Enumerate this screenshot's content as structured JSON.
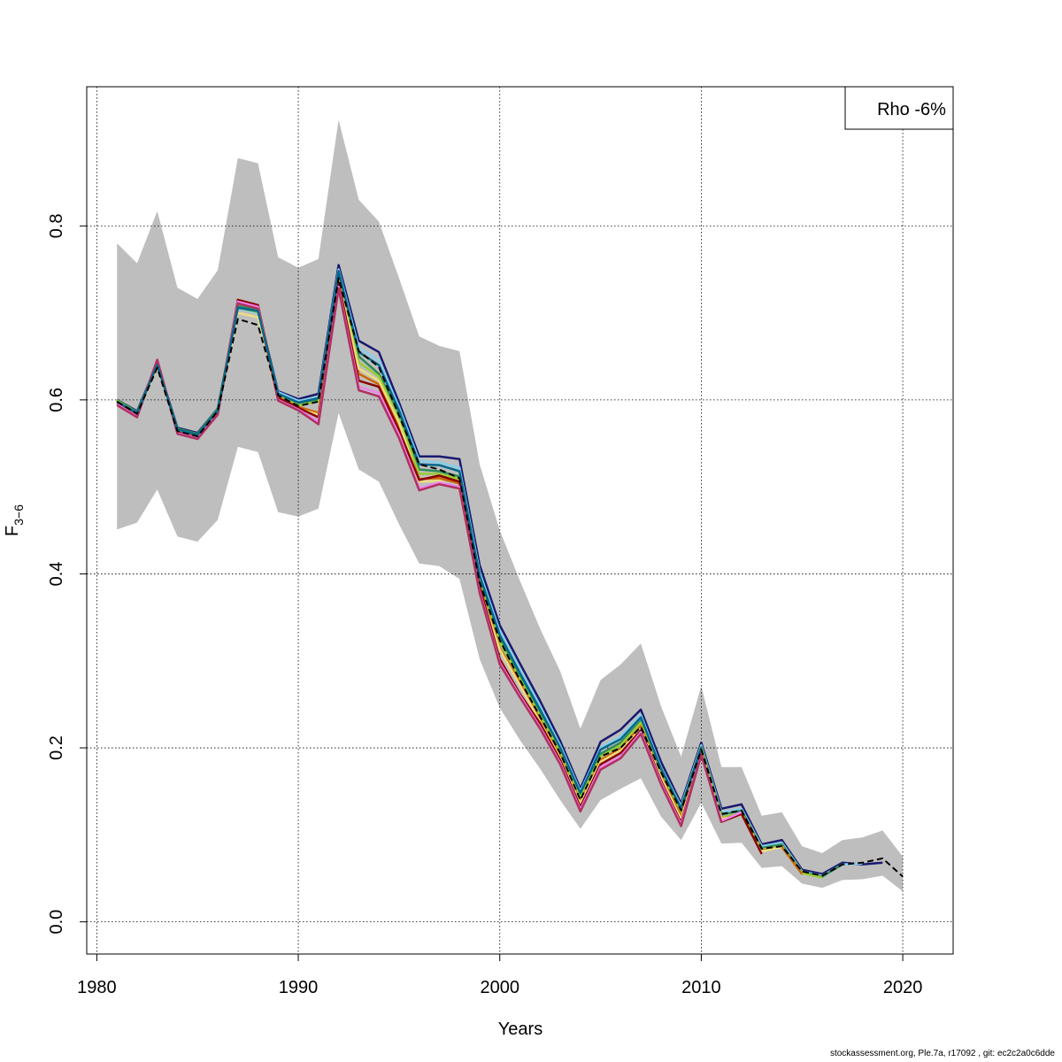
{
  "chart_data": {
    "type": "line",
    "title": "",
    "xlabel": "Years",
    "ylabel_main": "F",
    "ylabel_sub": "3−6",
    "xlim": [
      1979.5,
      2022.5
    ],
    "ylim": [
      -0.037,
      0.96
    ],
    "x_ticks": [
      "1980",
      "1990",
      "2000",
      "2010",
      "2020"
    ],
    "y_ticks": [
      "0.0",
      "0.2",
      "0.4",
      "0.6",
      "0.8"
    ],
    "grid": true,
    "legend": {
      "position": "top-right",
      "text": "Rho -6%"
    },
    "band_color": "#bebebe",
    "confidence_band": {
      "years": [
        1981,
        1982,
        1983,
        1984,
        1985,
        1986,
        1987,
        1988,
        1989,
        1990,
        1991,
        1992,
        1993,
        1994,
        1995,
        1996,
        1997,
        1998,
        1999,
        2000,
        2001,
        2002,
        2003,
        2004,
        2005,
        2006,
        2007,
        2008,
        2009,
        2010,
        2011,
        2012,
        2013,
        2014,
        2015,
        2016,
        2017,
        2018,
        2019,
        2020
      ],
      "upper": [
        0.78,
        0.757,
        0.817,
        0.729,
        0.716,
        0.749,
        0.878,
        0.872,
        0.764,
        0.752,
        0.762,
        0.922,
        0.83,
        0.805,
        0.74,
        0.673,
        0.662,
        0.656,
        0.526,
        0.45,
        0.392,
        0.337,
        0.288,
        0.222,
        0.278,
        0.296,
        0.32,
        0.248,
        0.19,
        0.271,
        0.178,
        0.178,
        0.122,
        0.126,
        0.087,
        0.079,
        0.094,
        0.097,
        0.105,
        0.075
      ],
      "lower": [
        0.451,
        0.459,
        0.497,
        0.443,
        0.437,
        0.462,
        0.546,
        0.54,
        0.471,
        0.466,
        0.475,
        0.585,
        0.52,
        0.506,
        0.457,
        0.412,
        0.409,
        0.394,
        0.302,
        0.246,
        0.209,
        0.176,
        0.14,
        0.107,
        0.14,
        0.153,
        0.165,
        0.121,
        0.094,
        0.137,
        0.09,
        0.091,
        0.062,
        0.064,
        0.044,
        0.039,
        0.048,
        0.049,
        0.053,
        0.035
      ]
    },
    "series": [
      {
        "color": "#000000",
        "dashed": true,
        "x": [
          1981,
          1982,
          1983,
          1984,
          1985,
          1986,
          1987,
          1988,
          1989,
          1990,
          1991,
          1992,
          1993,
          1994,
          1995,
          1996,
          1997,
          1998,
          1999,
          2000,
          2001,
          2002,
          2003,
          2004,
          2005,
          2006,
          2007,
          2008,
          2009,
          2010,
          2011,
          2012,
          2013,
          2014,
          2015,
          2016,
          2017,
          2018,
          2019,
          2020
        ],
        "y": [
          0.598,
          0.584,
          0.637,
          0.564,
          0.558,
          0.587,
          0.693,
          0.686,
          0.605,
          0.593,
          0.598,
          0.74,
          0.656,
          0.638,
          0.582,
          0.526,
          0.52,
          0.51,
          0.39,
          0.324,
          0.278,
          0.236,
          0.194,
          0.14,
          0.19,
          0.2,
          0.224,
          0.172,
          0.128,
          0.198,
          0.124,
          0.128,
          0.084,
          0.087,
          0.058,
          0.053,
          0.066,
          0.068,
          0.073,
          0.052
        ]
      },
      {
        "color": "#191970",
        "dashed": false,
        "x": [
          1981,
          1982,
          1983,
          1984,
          1985,
          1986,
          1987,
          1988,
          1989,
          1990,
          1991,
          1992,
          1993,
          1994,
          1995,
          1996,
          1997,
          1998,
          1999,
          2000,
          2001,
          2002,
          2003,
          2004,
          2005,
          2006,
          2007,
          2008,
          2009,
          2010,
          2011,
          2012,
          2013,
          2014,
          2015,
          2016,
          2017,
          2018,
          2019
        ],
        "y": [
          0.6,
          0.587,
          0.642,
          0.568,
          0.562,
          0.59,
          0.707,
          0.703,
          0.61,
          0.601,
          0.607,
          0.755,
          0.668,
          0.655,
          0.597,
          0.535,
          0.535,
          0.532,
          0.41,
          0.341,
          0.297,
          0.254,
          0.208,
          0.153,
          0.207,
          0.221,
          0.244,
          0.184,
          0.136,
          0.206,
          0.13,
          0.135,
          0.089,
          0.094,
          0.06,
          0.055,
          0.068,
          0.066,
          0.068
        ]
      },
      {
        "color": "#87ceeb",
        "dashed": false,
        "x": [
          1981,
          1982,
          1983,
          1984,
          1985,
          1986,
          1987,
          1988,
          1989,
          1990,
          1991,
          1992,
          1993,
          1994,
          1995,
          1996,
          1997,
          1998,
          1999,
          2000,
          2001,
          2002,
          2003,
          2004,
          2005,
          2006,
          2007,
          2008,
          2009,
          2010,
          2011,
          2012,
          2013,
          2014,
          2015,
          2016,
          2017,
          2018
        ],
        "y": [
          0.599,
          0.586,
          0.64,
          0.566,
          0.56,
          0.589,
          0.705,
          0.7,
          0.609,
          0.599,
          0.603,
          0.75,
          0.66,
          0.645,
          0.592,
          0.53,
          0.528,
          0.522,
          0.402,
          0.334,
          0.29,
          0.248,
          0.203,
          0.15,
          0.2,
          0.213,
          0.238,
          0.178,
          0.133,
          0.203,
          0.126,
          0.13,
          0.087,
          0.091,
          0.058,
          0.053,
          0.066,
          0.067
        ]
      },
      {
        "color": "#2e8b57",
        "dashed": false,
        "x": [
          1981,
          1982,
          1983,
          1984,
          1985,
          1986,
          1987,
          1988,
          1989,
          1990,
          1991,
          1992,
          1993,
          1994,
          1995,
          1996,
          1997,
          1998,
          1999,
          2000,
          2001,
          2002,
          2003,
          2004,
          2005,
          2006,
          2007,
          2008,
          2009,
          2010,
          2011,
          2012,
          2013,
          2014,
          2015,
          2016,
          2017
        ],
        "y": [
          0.6,
          0.586,
          0.641,
          0.567,
          0.561,
          0.59,
          0.708,
          0.703,
          0.607,
          0.596,
          0.6,
          0.745,
          0.65,
          0.63,
          0.585,
          0.52,
          0.518,
          0.512,
          0.393,
          0.328,
          0.282,
          0.24,
          0.198,
          0.146,
          0.193,
          0.206,
          0.231,
          0.176,
          0.131,
          0.201,
          0.123,
          0.128,
          0.085,
          0.089,
          0.057,
          0.052,
          0.066
        ]
      },
      {
        "color": "#9acd32",
        "dashed": false,
        "x": [
          1981,
          1982,
          1983,
          1984,
          1985,
          1986,
          1987,
          1988,
          1989,
          1990,
          1991,
          1992,
          1993,
          1994,
          1995,
          1996,
          1997,
          1998,
          1999,
          2000,
          2001,
          2002,
          2003,
          2004,
          2005,
          2006,
          2007,
          2008,
          2009,
          2010,
          2011,
          2012,
          2013,
          2014,
          2015,
          2016
        ],
        "y": [
          0.599,
          0.585,
          0.64,
          0.566,
          0.56,
          0.588,
          0.706,
          0.701,
          0.605,
          0.594,
          0.598,
          0.742,
          0.643,
          0.627,
          0.578,
          0.515,
          0.515,
          0.509,
          0.389,
          0.322,
          0.279,
          0.237,
          0.195,
          0.143,
          0.19,
          0.203,
          0.229,
          0.172,
          0.126,
          0.198,
          0.12,
          0.125,
          0.083,
          0.087,
          0.056,
          0.051
        ]
      },
      {
        "color": "#cd6600",
        "dashed": false,
        "x": [
          1981,
          1982,
          1983,
          1984,
          1985,
          1986,
          1987,
          1988,
          1989,
          1990,
          1991,
          1992,
          1993,
          1994,
          1995,
          1996,
          1997,
          1998,
          1999,
          2000,
          2001,
          2002,
          2003,
          2004,
          2005,
          2006,
          2007,
          2008,
          2009,
          2010,
          2011,
          2012,
          2013,
          2014,
          2015
        ],
        "y": [
          0.598,
          0.584,
          0.639,
          0.565,
          0.559,
          0.587,
          0.712,
          0.707,
          0.603,
          0.592,
          0.585,
          0.738,
          0.63,
          0.618,
          0.57,
          0.509,
          0.51,
          0.504,
          0.386,
          0.315,
          0.275,
          0.232,
          0.19,
          0.138,
          0.186,
          0.199,
          0.225,
          0.168,
          0.121,
          0.196,
          0.118,
          0.124,
          0.082,
          0.086,
          0.055
        ]
      },
      {
        "color": "#eedc82",
        "dashed": false,
        "x": [
          1981,
          1982,
          1983,
          1984,
          1985,
          1986,
          1987,
          1988,
          1989,
          1990,
          1991,
          1992,
          1993,
          1994,
          1995,
          1996,
          1997,
          1998,
          1999,
          2000,
          2001,
          2002,
          2003,
          2004,
          2005,
          2006,
          2007,
          2008,
          2009,
          2010,
          2011,
          2012,
          2013,
          2014
        ],
        "y": [
          0.597,
          0.583,
          0.638,
          0.564,
          0.558,
          0.586,
          0.7,
          0.695,
          0.6,
          0.59,
          0.583,
          0.736,
          0.636,
          0.622,
          0.574,
          0.506,
          0.507,
          0.497,
          0.383,
          0.313,
          0.272,
          0.23,
          0.188,
          0.136,
          0.184,
          0.197,
          0.222,
          0.166,
          0.118,
          0.195,
          0.118,
          0.123,
          0.081,
          0.086
        ]
      },
      {
        "color": "#8b0000",
        "dashed": false,
        "x": [
          1981,
          1982,
          1983,
          1984,
          1985,
          1986,
          1987,
          1988,
          1989,
          1990,
          1991,
          1992,
          1993,
          1994,
          1995,
          1996,
          1997,
          1998,
          1999,
          2000,
          2001,
          2002,
          2003,
          2004,
          2005,
          2006,
          2007,
          2008,
          2009,
          2010,
          2011,
          2012,
          2013
        ],
        "y": [
          0.596,
          0.582,
          0.646,
          0.563,
          0.557,
          0.585,
          0.715,
          0.709,
          0.602,
          0.591,
          0.58,
          0.735,
          0.622,
          0.615,
          0.565,
          0.508,
          0.513,
          0.506,
          0.385,
          0.302,
          0.262,
          0.228,
          0.186,
          0.132,
          0.181,
          0.194,
          0.22,
          0.162,
          0.114,
          0.194,
          0.115,
          0.124,
          0.078
        ]
      },
      {
        "color": "#ee82ee",
        "dashed": false,
        "x": [
          1981,
          1982,
          1983,
          1984,
          1985,
          1986,
          1987,
          1988,
          1989,
          1990,
          1991,
          1992,
          1993,
          1994,
          1995,
          1996,
          1997,
          1998,
          1999,
          2000,
          2001,
          2002,
          2003,
          2004,
          2005,
          2006,
          2007,
          2008,
          2009,
          2010,
          2011,
          2012
        ],
        "y": [
          0.595,
          0.581,
          0.646,
          0.562,
          0.556,
          0.584,
          0.713,
          0.707,
          0.6,
          0.589,
          0.575,
          0.73,
          0.615,
          0.608,
          0.56,
          0.498,
          0.505,
          0.5,
          0.38,
          0.298,
          0.26,
          0.224,
          0.183,
          0.129,
          0.178,
          0.19,
          0.218,
          0.16,
          0.112,
          0.193,
          0.116,
          0.126
        ]
      },
      {
        "color": "#b03060",
        "dashed": false,
        "x": [
          1981,
          1982,
          1983,
          1984,
          1985,
          1986,
          1987,
          1988,
          1989,
          1990,
          1991,
          1992,
          1993,
          1994,
          1995,
          1996,
          1997,
          1998,
          1999,
          2000,
          2001,
          2002,
          2003,
          2004,
          2005,
          2006,
          2007,
          2008,
          2009,
          2010,
          2011
        ],
        "y": [
          0.594,
          0.58,
          0.646,
          0.561,
          0.555,
          0.583,
          0.711,
          0.705,
          0.599,
          0.588,
          0.572,
          0.728,
          0.611,
          0.604,
          0.556,
          0.496,
          0.503,
          0.498,
          0.378,
          0.296,
          0.258,
          0.222,
          0.181,
          0.127,
          0.175,
          0.188,
          0.216,
          0.158,
          0.11,
          0.192,
          0.114
        ]
      },
      {
        "color": "#00688b",
        "dashed": false,
        "x": [
          1981,
          1982,
          1983,
          1984,
          1985,
          1986,
          1987,
          1988,
          1989,
          1990,
          1991,
          1992,
          1993,
          1994,
          1995,
          1996,
          1997,
          1998,
          1999,
          2000,
          2001,
          2002,
          2003,
          2004,
          2005,
          2006,
          2007,
          2008,
          2009,
          2010
        ],
        "y": [
          0.598,
          0.585,
          0.64,
          0.566,
          0.56,
          0.588,
          0.706,
          0.702,
          0.607,
          0.597,
          0.602,
          0.748,
          0.655,
          0.64,
          0.588,
          0.526,
          0.525,
          0.518,
          0.398,
          0.33,
          0.286,
          0.244,
          0.2,
          0.148,
          0.198,
          0.21,
          0.235,
          0.176,
          0.13,
          0.2
        ]
      }
    ]
  },
  "footer": "stockassessment.org, Ple.7a, r17092 , git: ec2c2a0c6dde"
}
